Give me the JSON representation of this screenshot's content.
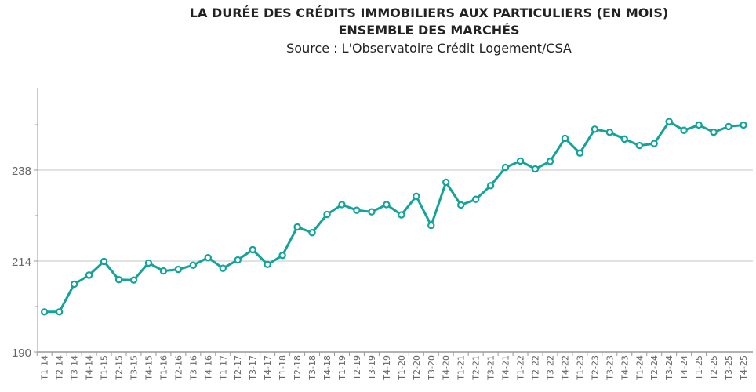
{
  "chart_data": {
    "type": "line",
    "title": "LA DURÉE DES CRÉDITS IMMOBILIERS AUX PARTICULIERS (EN MOIS)",
    "subtitle": "ENSEMBLE DES MARCHÉS",
    "source": "Source : L'Observatoire Crédit Logement/CSA",
    "xlabel": "",
    "ylabel": "",
    "ylim": [
      190,
      260
    ],
    "yticks": [
      190,
      214,
      238
    ],
    "grid": true,
    "color": "#14A39A",
    "categories": [
      "T1-14",
      "T2-14",
      "T3-14",
      "T4-14",
      "T1-15",
      "T2-15",
      "T3-15",
      "T4-15",
      "T1-16",
      "T2-16",
      "T3-16",
      "T4-16",
      "T1-17",
      "T2-17",
      "T3-17",
      "T4-17",
      "T1-18",
      "T2-18",
      "T3-18",
      "T4-18",
      "T1-19",
      "T2-19",
      "T3-19",
      "T4-19",
      "T1-20",
      "T2-20",
      "T3-20",
      "T4-20",
      "T1-21",
      "T2-21",
      "T3-21",
      "T4-21",
      "T1-22",
      "T2-22",
      "T3-22",
      "T4-22",
      "T1-23",
      "T2-23",
      "T3-23",
      "T4-23",
      "T1-24",
      "T2-24",
      "T3-24",
      "T4-24",
      "T1-25",
      "T2-25",
      "T3-25",
      "T4-25"
    ],
    "values": [
      200.6,
      200.6,
      207.9,
      210.3,
      213.9,
      209.1,
      209.0,
      213.5,
      211.4,
      211.8,
      212.9,
      214.9,
      212.1,
      214.3,
      217.0,
      213.1,
      215.5,
      223.0,
      221.5,
      226.3,
      228.9,
      227.4,
      227.0,
      228.9,
      226.2,
      231.1,
      223.4,
      234.8,
      228.8,
      230.3,
      233.9,
      238.7,
      240.4,
      238.3,
      240.3,
      246.4,
      242.5,
      248.8,
      248.0,
      246.2,
      244.5,
      245.0,
      250.8,
      248.5,
      249.9,
      248.0,
      249.5,
      249.9
    ]
  }
}
